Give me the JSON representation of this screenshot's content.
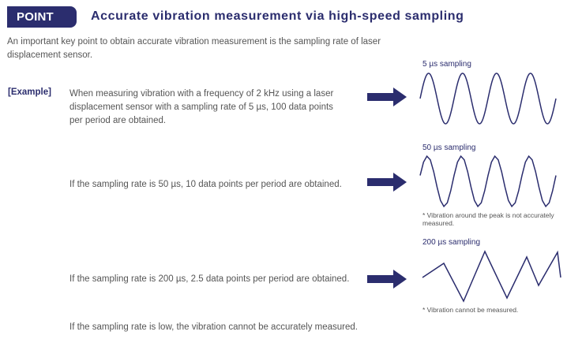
{
  "header": {
    "badge": "POINT",
    "title": "Accurate vibration measurement via high-speed sampling"
  },
  "intro": "An important key point to obtain accurate vibration measurement is the sampling rate of laser displacement sensor.",
  "example": {
    "label": "[Example]",
    "rows": [
      {
        "text": "When measuring vibration with a frequency of 2 kHz using a laser displacement sensor with a sampling rate of 5 µs, 100 data points per period are obtained.",
        "wave_label": "5 µs sampling",
        "note": ""
      },
      {
        "text": "If the sampling rate is 50 µs, 10 data points per period are obtained.",
        "wave_label": "50 µs sampling",
        "note": "* Vibration around the peak is not accurately measured."
      },
      {
        "text": "If the sampling rate is 200 µs, 2.5 data points per period are obtained.",
        "wave_label": "200 µs sampling",
        "note": "* Vibration cannot be measured."
      }
    ],
    "conclusion": "If the sampling rate is low, the vibration cannot be accurately measured."
  },
  "colors": {
    "accent": "#2b2d6e",
    "text": "#555555",
    "background": "#ffffff"
  },
  "icons": {
    "arrow": "right-arrow-icon"
  }
}
